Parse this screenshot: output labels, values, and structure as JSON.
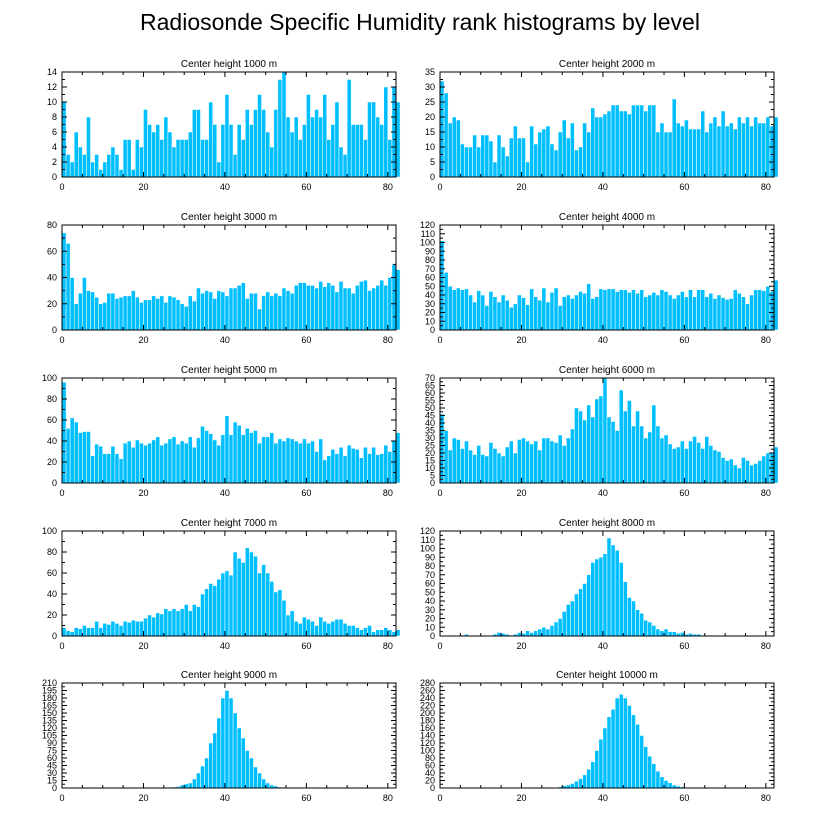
{
  "title": "Radiosonde Specific Humidity rank histograms by level",
  "colors": {
    "bar": "#00bfff",
    "bar_edge": "#ffffff",
    "axis": "#000000"
  },
  "chart_data": [
    {
      "type": "bar",
      "title": "Center height 1000 m",
      "ylim": [
        0,
        14
      ],
      "yticks": [
        0,
        2,
        4,
        6,
        8,
        10,
        12,
        14
      ],
      "xlim": [
        0,
        82
      ],
      "xticks": [
        0,
        20,
        40,
        60,
        80
      ],
      "values": [
        10,
        3,
        2,
        6,
        4,
        3,
        8,
        2,
        3,
        1,
        2,
        3,
        4,
        3,
        1,
        5,
        5,
        1,
        5,
        4,
        9,
        7,
        6,
        7,
        5,
        8,
        6,
        4,
        5,
        5,
        5,
        6,
        9,
        9,
        5,
        5,
        10,
        7,
        2,
        7,
        11,
        7,
        3,
        7,
        5,
        9,
        7,
        9,
        11,
        9,
        6,
        4,
        9,
        13,
        14,
        8,
        6,
        8,
        5,
        7,
        11,
        8,
        9,
        8,
        11,
        5,
        7,
        10,
        4,
        3,
        13,
        7,
        7,
        7,
        5,
        10,
        10,
        8,
        7,
        12,
        5,
        12,
        10
      ]
    },
    {
      "type": "bar",
      "title": "Center height 2000 m",
      "ylim": [
        0,
        35
      ],
      "yticks": [
        0,
        5,
        10,
        15,
        20,
        25,
        30,
        35
      ],
      "xlim": [
        0,
        82
      ],
      "xticks": [
        0,
        20,
        40,
        60,
        80
      ],
      "values": [
        32,
        28,
        18,
        20,
        19,
        11,
        10,
        10,
        14,
        10,
        14,
        14,
        12,
        5,
        14,
        10,
        7,
        13,
        17,
        13,
        13,
        5,
        17,
        11,
        15,
        16,
        17,
        11,
        9,
        15,
        19,
        13,
        18,
        9,
        10,
        18,
        15,
        23,
        20,
        20,
        21,
        22,
        24,
        24,
        22,
        22,
        21,
        24,
        24,
        24,
        22,
        24,
        24,
        15,
        18,
        15,
        15,
        26,
        18,
        17,
        19,
        16,
        16,
        16,
        22,
        15,
        18,
        20,
        17,
        22,
        17,
        18,
        16,
        20,
        18,
        20,
        17,
        20,
        18,
        18,
        20,
        17,
        20
      ]
    },
    {
      "type": "bar",
      "title": "Center height 3000 m",
      "ylim": [
        0,
        80
      ],
      "yticks": [
        0,
        20,
        40,
        60,
        80
      ],
      "xlim": [
        0,
        82
      ],
      "xticks": [
        0,
        20,
        40,
        60,
        80
      ],
      "values": [
        74,
        66,
        40,
        20,
        28,
        40,
        30,
        29,
        25,
        20,
        21,
        28,
        28,
        24,
        25,
        26,
        26,
        30,
        25,
        21,
        23,
        23,
        26,
        24,
        26,
        21,
        26,
        25,
        23,
        20,
        18,
        26,
        22,
        32,
        28,
        30,
        29,
        24,
        30,
        29,
        26,
        32,
        32,
        34,
        36,
        24,
        28,
        28,
        16,
        26,
        29,
        26,
        28,
        26,
        32,
        30,
        28,
        34,
        36,
        36,
        34,
        34,
        32,
        37,
        33,
        36,
        34,
        29,
        37,
        32,
        32,
        28,
        34,
        37,
        38,
        30,
        32,
        34,
        38,
        34,
        40,
        50,
        46
      ]
    },
    {
      "type": "bar",
      "title": "Center height 4000 m",
      "ylim": [
        0,
        120
      ],
      "yticks": [
        0,
        10,
        20,
        30,
        40,
        50,
        60,
        70,
        80,
        90,
        100,
        110,
        120
      ],
      "xlim": [
        0,
        82
      ],
      "xticks": [
        0,
        20,
        40,
        60,
        80
      ],
      "values": [
        102,
        66,
        50,
        46,
        48,
        46,
        47,
        40,
        32,
        45,
        40,
        28,
        44,
        38,
        32,
        40,
        34,
        26,
        30,
        40,
        37,
        29,
        47,
        38,
        34,
        48,
        32,
        43,
        48,
        28,
        38,
        40,
        36,
        40,
        44,
        42,
        53,
        36,
        38,
        47,
        46,
        47,
        47,
        44,
        46,
        46,
        43,
        46,
        42,
        46,
        38,
        40,
        43,
        40,
        46,
        44,
        40,
        36,
        40,
        44,
        38,
        46,
        38,
        46,
        46,
        38,
        42,
        36,
        40,
        37,
        35,
        36,
        46,
        42,
        38,
        30,
        40,
        46,
        46,
        45,
        50,
        44,
        57
      ]
    },
    {
      "type": "bar",
      "title": "Center height 5000 m",
      "ylim": [
        0,
        100
      ],
      "yticks": [
        0,
        20,
        40,
        60,
        80,
        100
      ],
      "xlim": [
        0,
        82
      ],
      "xticks": [
        0,
        20,
        40,
        60,
        80
      ],
      "values": [
        96,
        52,
        62,
        58,
        48,
        49,
        49,
        26,
        37,
        35,
        28,
        28,
        35,
        28,
        23,
        38,
        40,
        34,
        41,
        38,
        36,
        38,
        41,
        44,
        36,
        38,
        42,
        44,
        37,
        40,
        38,
        44,
        34,
        43,
        54,
        50,
        47,
        41,
        36,
        46,
        64,
        46,
        58,
        55,
        46,
        52,
        48,
        50,
        38,
        44,
        44,
        48,
        38,
        42,
        40,
        43,
        42,
        40,
        38,
        42,
        38,
        40,
        30,
        42,
        22,
        26,
        32,
        28,
        34,
        26,
        36,
        33,
        32,
        24,
        34,
        28,
        34,
        27,
        28,
        36,
        30,
        40,
        48
      ]
    },
    {
      "type": "bar",
      "title": "Center height 6000 m",
      "ylim": [
        0,
        70
      ],
      "yticks": [
        0,
        5,
        10,
        15,
        20,
        25,
        30,
        35,
        40,
        45,
        50,
        55,
        60,
        65,
        70
      ],
      "xlim": [
        0,
        82
      ],
      "xticks": [
        0,
        20,
        40,
        60,
        80
      ],
      "values": [
        46,
        35,
        22,
        30,
        29,
        23,
        28,
        22,
        19,
        25,
        19,
        18,
        27,
        23,
        20,
        18,
        24,
        28,
        20,
        29,
        30,
        28,
        26,
        28,
        22,
        30,
        30,
        28,
        27,
        32,
        25,
        30,
        36,
        50,
        48,
        42,
        52,
        44,
        56,
        58,
        70,
        44,
        41,
        35,
        62,
        48,
        55,
        38,
        48,
        38,
        30,
        34,
        52,
        38,
        30,
        32,
        26,
        23,
        24,
        28,
        23,
        28,
        31,
        27,
        23,
        31,
        25,
        22,
        21,
        17,
        15,
        16,
        12,
        10,
        17,
        15,
        12,
        13,
        15,
        18,
        20,
        20,
        24
      ]
    },
    {
      "type": "bar",
      "title": "Center height 7000 m",
      "ylim": [
        0,
        100
      ],
      "yticks": [
        0,
        20,
        40,
        60,
        80,
        100
      ],
      "xlim": [
        0,
        82
      ],
      "xticks": [
        0,
        20,
        40,
        60,
        80
      ],
      "values": [
        8,
        5,
        4,
        8,
        7,
        10,
        8,
        8,
        14,
        8,
        12,
        11,
        14,
        12,
        10,
        14,
        13,
        15,
        14,
        14,
        17,
        20,
        18,
        22,
        21,
        26,
        24,
        26,
        24,
        26,
        30,
        24,
        30,
        28,
        40,
        45,
        50,
        48,
        54,
        60,
        62,
        58,
        80,
        74,
        70,
        84,
        80,
        76,
        60,
        68,
        60,
        52,
        42,
        44,
        34,
        20,
        24,
        14,
        12,
        18,
        16,
        14,
        10,
        18,
        14,
        12,
        14,
        16,
        16,
        12,
        10,
        10,
        8,
        6,
        8,
        10,
        4,
        6,
        6,
        8,
        6,
        4,
        6
      ]
    },
    {
      "type": "bar",
      "title": "Center height 8000 m",
      "ylim": [
        0,
        120
      ],
      "yticks": [
        0,
        10,
        20,
        30,
        40,
        50,
        60,
        70,
        80,
        90,
        100,
        110,
        120
      ],
      "xlim": [
        0,
        82
      ],
      "xticks": [
        0,
        20,
        40,
        60,
        80
      ],
      "values": [
        0,
        0,
        0,
        0,
        0,
        1,
        2,
        0,
        0,
        0,
        0,
        0,
        0,
        2,
        4,
        3,
        2,
        1,
        2,
        4,
        3,
        6,
        4,
        6,
        8,
        10,
        8,
        12,
        16,
        20,
        28,
        36,
        40,
        48,
        54,
        60,
        70,
        84,
        88,
        90,
        94,
        112,
        104,
        98,
        84,
        62,
        44,
        40,
        30,
        26,
        18,
        16,
        12,
        8,
        6,
        8,
        5,
        5,
        3,
        4,
        2,
        3,
        2,
        2,
        1,
        0,
        1,
        0,
        0,
        0,
        0,
        0,
        0,
        0,
        0,
        0,
        0,
        0,
        0,
        0,
        0,
        0,
        0
      ]
    },
    {
      "type": "bar",
      "title": "Center height 9000 m",
      "ylim": [
        0,
        210
      ],
      "yticks": [
        0,
        15,
        30,
        45,
        60,
        75,
        90,
        105,
        120,
        135,
        150,
        165,
        180,
        195,
        210
      ],
      "xlim": [
        0,
        82
      ],
      "xticks": [
        0,
        20,
        40,
        60,
        80
      ],
      "values": [
        0,
        0,
        0,
        0,
        0,
        0,
        0,
        0,
        0,
        0,
        0,
        0,
        0,
        0,
        0,
        0,
        0,
        0,
        0,
        0,
        0,
        0,
        0,
        0,
        0,
        0,
        1,
        2,
        3,
        6,
        8,
        10,
        18,
        30,
        44,
        60,
        90,
        110,
        140,
        180,
        195,
        180,
        150,
        120,
        100,
        75,
        60,
        42,
        30,
        18,
        10,
        6,
        4,
        2,
        1,
        1,
        0,
        0,
        0,
        0,
        0,
        0,
        0,
        0,
        0,
        0,
        0,
        0,
        0,
        0,
        0,
        0,
        0,
        0,
        0,
        0,
        0,
        0,
        0,
        0,
        0,
        0,
        0
      ]
    },
    {
      "type": "bar",
      "title": "Center height 10000 m",
      "ylim": [
        0,
        280
      ],
      "yticks": [
        0,
        20,
        40,
        60,
        80,
        100,
        120,
        140,
        160,
        180,
        200,
        220,
        240,
        260,
        280
      ],
      "xlim": [
        0,
        82
      ],
      "xticks": [
        0,
        20,
        40,
        60,
        80
      ],
      "values": [
        0,
        0,
        0,
        0,
        0,
        0,
        0,
        0,
        0,
        0,
        0,
        0,
        0,
        0,
        0,
        0,
        0,
        0,
        0,
        0,
        0,
        0,
        0,
        0,
        0,
        0,
        0,
        1,
        2,
        3,
        6,
        8,
        12,
        18,
        25,
        35,
        50,
        70,
        100,
        130,
        160,
        190,
        210,
        240,
        250,
        240,
        220,
        195,
        170,
        140,
        110,
        85,
        65,
        45,
        30,
        20,
        14,
        8,
        5,
        3,
        2,
        1,
        0,
        0,
        0,
        0,
        0,
        0,
        0,
        0,
        0,
        0,
        0,
        0,
        0,
        0,
        0,
        0,
        0,
        0,
        0,
        0,
        0
      ]
    }
  ]
}
